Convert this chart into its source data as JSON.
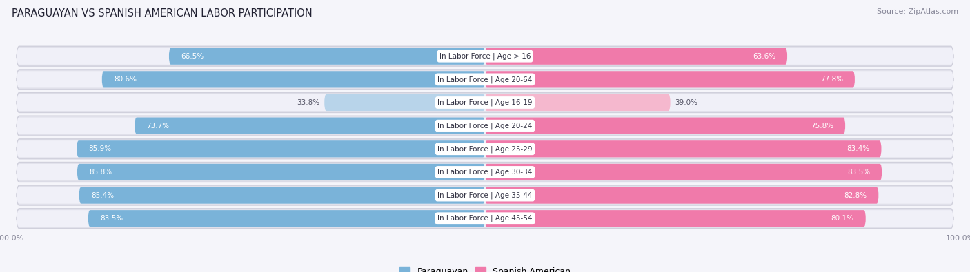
{
  "title": "PARAGUAYAN VS SPANISH AMERICAN LABOR PARTICIPATION",
  "source": "Source: ZipAtlas.com",
  "categories": [
    "In Labor Force | Age > 16",
    "In Labor Force | Age 20-64",
    "In Labor Force | Age 16-19",
    "In Labor Force | Age 20-24",
    "In Labor Force | Age 25-29",
    "In Labor Force | Age 30-34",
    "In Labor Force | Age 35-44",
    "In Labor Force | Age 45-54"
  ],
  "paraguayan": [
    66.5,
    80.6,
    33.8,
    73.7,
    85.9,
    85.8,
    85.4,
    83.5
  ],
  "spanish_american": [
    63.6,
    77.8,
    39.0,
    75.8,
    83.4,
    83.5,
    82.8,
    80.1
  ],
  "paraguayan_color": "#7ab3d9",
  "paraguayan_color_light": "#b8d4ea",
  "spanish_american_color": "#f07aaa",
  "spanish_american_color_light": "#f5b8ce",
  "row_bg_color": "#e8e8f0",
  "row_bg_inner": "#f2f2f8",
  "fig_bg_color": "#f5f5fa",
  "max_val": 100.0,
  "bar_height": 0.72,
  "legend_paraguayan": "Paraguayan",
  "legend_spanish": "Spanish American"
}
